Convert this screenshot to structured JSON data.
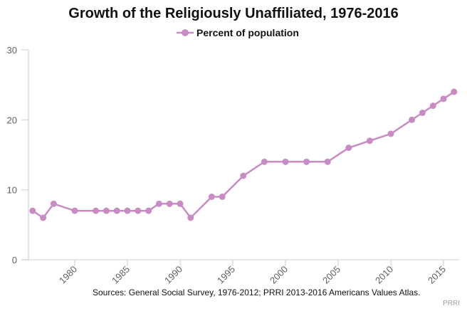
{
  "chart_data": {
    "type": "line",
    "title": "Growth of the Religiously Unaffiliated, 1976-2016",
    "xlabel": "",
    "ylabel": "",
    "ylim": [
      0,
      30
    ],
    "xlim": [
      1975.6,
      2016.5
    ],
    "yticks": [
      0,
      10,
      20,
      30
    ],
    "xticks": [
      1980,
      1985,
      1990,
      1995,
      2000,
      2005,
      2010,
      2015
    ],
    "grid": false,
    "legend": "top-center",
    "series": [
      {
        "name": "Percent of population",
        "color": "#c88bc4",
        "x": [
          1976,
          1977,
          1978,
          1980,
          1982,
          1983,
          1984,
          1985,
          1986,
          1987,
          1988,
          1989,
          1990,
          1991,
          1993,
          1994,
          1996,
          1998,
          2000,
          2002,
          2004,
          2006,
          2008,
          2010,
          2012,
          2013,
          2014,
          2015,
          2016
        ],
        "values": [
          7,
          6,
          8,
          7,
          7,
          7,
          7,
          7,
          7,
          7,
          8,
          8,
          8,
          6,
          9,
          9,
          12,
          14,
          14,
          14,
          14,
          16,
          17,
          18,
          20,
          21,
          22,
          23,
          24
        ]
      }
    ],
    "source": "Sources: General Social Survey, 1976-2012; PRRI 2013-2016 Americans Values Atlas.",
    "credit": "PRRI"
  }
}
